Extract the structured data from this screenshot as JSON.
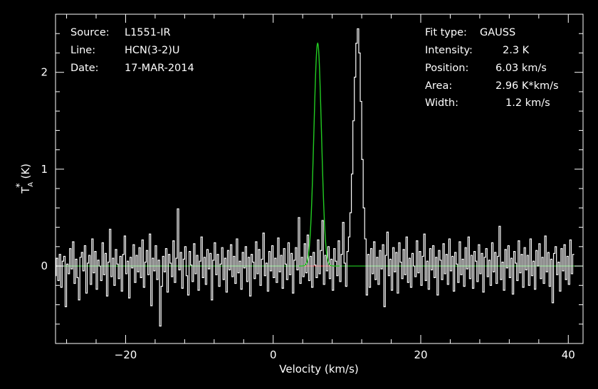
{
  "header_left": {
    "source_label": "Source:",
    "source_value": "L1551-IR",
    "line_label": "Line:",
    "line_value": "HCN(3-2)U",
    "date_label": "Date:",
    "date_value": "17-MAR-2014"
  },
  "fit_info": {
    "fit_type_label": "Fit type:",
    "fit_type_value": "GAUSS",
    "intensity_label": "Intensity:",
    "intensity_value": "2.3 K",
    "position_label": "Position:",
    "position_value": "6.03 km/s",
    "area_label": "Area:",
    "area_value": "2.96 K*km/s",
    "width_label": "Width:",
    "width_value": "1.2 km/s"
  },
  "colors": {
    "background": "#000000",
    "frame": "#ffffff",
    "spectrum": "#ffffff",
    "fit": "#22cc22",
    "residual_line": "#dd2020"
  },
  "chart_data": {
    "type": "line",
    "xlabel": "Velocity (km/s)",
    "ylabel_main": "T",
    "ylabel_sup": "*",
    "ylabel_sub": "A",
    "ylabel_unit": "(K)",
    "xlim": [
      -29.5,
      42
    ],
    "ylim": [
      -0.8,
      2.6
    ],
    "x_ticks": [
      -20,
      0,
      20,
      40
    ],
    "x_tick_labels": [
      "−20",
      "0",
      "20",
      "40"
    ],
    "y_ticks": [
      0,
      1,
      2
    ],
    "y_tick_labels": [
      "0",
      "1",
      "2"
    ],
    "grid": false,
    "spectrum": {
      "x_start": -29.5,
      "x_step": 0.2,
      "y": [
        -0.1,
        0.08,
        -0.15,
        0.12,
        -0.22,
        0.05,
        0.1,
        -0.42,
        0.02,
        -0.08,
        0.18,
        -0.03,
        0.25,
        -0.18,
        0.07,
        -0.12,
        -0.35,
        0.09,
        0.14,
        -0.05,
        0.21,
        -0.28,
        0.03,
        0.11,
        -0.19,
        0.28,
        -0.07,
        0.15,
        -0.24,
        0.06,
        0.0,
        -0.15,
        0.24,
        -0.09,
        0.13,
        -0.31,
        0.04,
        0.38,
        -0.11,
        0.08,
        -0.2,
        0.17,
        0.02,
        -0.13,
        0.1,
        -0.26,
        0.12,
        0.31,
        -0.08,
        0.05,
        -0.33,
        0.09,
        -0.02,
        0.22,
        -0.17,
        0.11,
        -0.06,
        0.19,
        -0.12,
        0.27,
        -0.22,
        0.04,
        0.16,
        -0.09,
        0.33,
        -0.41,
        0.08,
        -0.05,
        0.21,
        -0.14,
        0.06,
        -0.62,
        -0.21,
        0.1,
        -0.06,
        0.18,
        -0.27,
        0.12,
        0.03,
        -0.11,
        0.26,
        -0.17,
        0.08,
        0.59,
        -0.04,
        0.14,
        -0.23,
        0.07,
        0.2,
        -0.1,
        -0.3,
        0.15,
        0.01,
        -0.16,
        0.23,
        -0.08,
        0.11,
        -0.25,
        0.05,
        0.3,
        -0.12,
        0.09,
        -0.19,
        0.17,
        -0.03,
        0.13,
        -0.35,
        0.06,
        0.24,
        -0.09,
        0.12,
        -0.21,
        0.02,
        0.19,
        -0.14,
        0.08,
        -0.27,
        0.16,
        -0.04,
        0.22,
        -0.11,
        0.1,
        -0.18,
        0.28,
        -0.07,
        0.05,
        -0.24,
        0.14,
        -0.02,
        0.2,
        -0.16,
        0.09,
        -0.31,
        0.12,
        0.04,
        -0.13,
        0.25,
        -0.08,
        0.17,
        -0.2,
        0.07,
        0.34,
        -0.1,
        0.03,
        -0.26,
        0.15,
        -0.05,
        0.21,
        -0.12,
        0.08,
        -0.17,
        0.29,
        -0.06,
        0.11,
        -0.23,
        0.18,
        0.02,
        -0.14,
        0.24,
        -0.09,
        0.13,
        -0.28,
        0.06,
        0.19,
        -0.04,
        0.5,
        -0.18,
        0.09,
        -0.11,
        0.23,
        -0.07,
        0.32,
        -0.15,
        0.1,
        -0.22,
        0.14,
        0.01,
        -0.12,
        0.27,
        -0.08,
        0.16,
        0.47,
        -0.19,
        0.11,
        -0.05,
        0.2,
        -0.13,
        0.07,
        -0.25,
        0.18,
        0.05,
        -0.1,
        0.26,
        -0.16,
        0.12,
        0.45,
        0.03,
        -0.21,
        0.15,
        0.3,
        0.55,
        0.95,
        1.5,
        1.95,
        2.3,
        2.45,
        2.2,
        1.7,
        1.1,
        0.6,
        0.28,
        -0.3,
        0.12,
        -0.22,
        0.18,
        -0.08,
        0.25,
        -0.14,
        0.09,
        -0.19,
        0.16,
        -0.03,
        0.22,
        -0.42,
        0.11,
        0.35,
        -0.1,
        0.07,
        -0.25,
        0.19,
        -0.06,
        0.14,
        -0.28,
        0.24,
        0.04,
        -0.13,
        0.17,
        -0.09,
        0.3,
        -0.17,
        0.08,
        -0.22,
        0.13,
        0.0,
        -0.11,
        0.26,
        -0.07,
        0.15,
        -0.2,
        0.1,
        0.33,
        -0.15,
        0.05,
        -0.24,
        0.18,
        -0.04,
        0.21,
        -0.12,
        0.09,
        -0.3,
        0.16,
        0.06,
        -0.14,
        0.23,
        -0.08,
        0.12,
        -0.19,
        0.28,
        -0.05,
        0.1,
        -0.26,
        0.14,
        0.02,
        -0.17,
        0.25,
        -0.09,
        0.07,
        -0.21,
        0.19,
        -0.03,
        0.3,
        -0.13,
        0.11,
        -0.23,
        0.15,
        0.05,
        -0.16,
        0.22,
        -0.08,
        0.13,
        -0.27,
        0.09,
        0.18,
        -0.11,
        0.06,
        -0.2,
        0.24,
        -0.06,
        0.14,
        -0.18,
        0.1,
        0.41,
        -0.14,
        0.04,
        -0.25,
        0.17,
        -0.02,
        0.21,
        -0.12,
        0.08,
        -0.29,
        0.15,
        0.03,
        -0.15,
        0.26,
        -0.07,
        0.12,
        -0.22,
        0.19,
        -0.04,
        0.11,
        -0.2,
        0.28,
        -0.1,
        0.05,
        -0.24,
        0.16,
        0.0,
        0.23,
        -0.13,
        0.09,
        -0.18,
        0.31,
        -0.06,
        0.14,
        -0.21,
        0.07,
        -0.38,
        0.13,
        0.2,
        -0.09,
        0.04,
        -0.26,
        0.18,
        -0.05,
        0.22,
        -0.14,
        0.1,
        -0.19,
        0.27,
        -0.08,
        0.12
      ]
    },
    "fit": {
      "function": "gaussian",
      "amplitude": 2.3,
      "center": 6.03,
      "fwhm": 1.2,
      "fit_range": [
        3.5,
        9.0
      ]
    }
  }
}
